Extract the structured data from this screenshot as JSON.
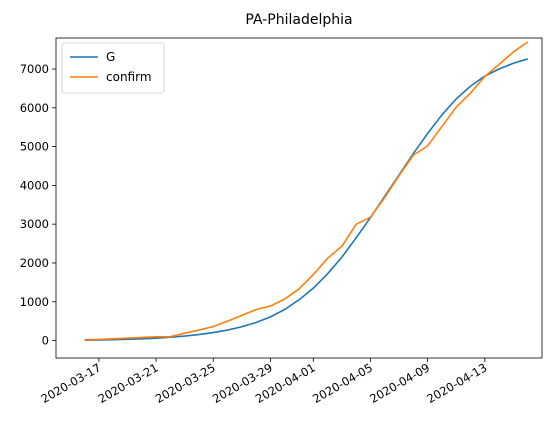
{
  "chart_data": {
    "type": "line",
    "title": "PA-Philadelphia",
    "xlabel": "",
    "ylabel": "",
    "x_tick_labels": [
      "2020-03-17",
      "2020-03-21",
      "2020-03-25",
      "2020-03-29",
      "2020-04-01",
      "2020-04-05",
      "2020-04-09",
      "2020-04-13"
    ],
    "x_tick_dates": [
      "2020-03-17",
      "2020-03-21",
      "2020-03-25",
      "2020-03-29",
      "2020-04-01",
      "2020-04-05",
      "2020-04-09",
      "2020-04-13"
    ],
    "y_ticks": [
      0,
      1000,
      2000,
      3000,
      4000,
      5000,
      6000,
      7000
    ],
    "x_range": [
      "2020-03-14",
      "2020-04-17"
    ],
    "ylim": [
      -450,
      7800
    ],
    "legend_position": "upper-left",
    "grid": false,
    "x": [
      "2020-03-16",
      "2020-03-17",
      "2020-03-18",
      "2020-03-19",
      "2020-03-20",
      "2020-03-21",
      "2020-03-22",
      "2020-03-23",
      "2020-03-24",
      "2020-03-25",
      "2020-03-26",
      "2020-03-27",
      "2020-03-28",
      "2020-03-29",
      "2020-03-30",
      "2020-03-31",
      "2020-04-01",
      "2020-04-02",
      "2020-04-03",
      "2020-04-04",
      "2020-04-05",
      "2020-04-06",
      "2020-04-07",
      "2020-04-08",
      "2020-04-09",
      "2020-04-10",
      "2020-04-11",
      "2020-04-12",
      "2020-04-13",
      "2020-04-14",
      "2020-04-15",
      "2020-04-16"
    ],
    "series": [
      {
        "name": "G",
        "color": "#1f77b4",
        "values": [
          10,
          15,
          22,
          32,
          45,
          62,
          85,
          115,
          155,
          205,
          270,
          355,
          465,
          610,
          800,
          1050,
          1350,
          1720,
          2150,
          2650,
          3170,
          3720,
          4270,
          4820,
          5340,
          5820,
          6230,
          6560,
          6820,
          7000,
          7150,
          7260
        ]
      },
      {
        "name": "confirm",
        "color": "#ff7f0e",
        "values": [
          20,
          30,
          45,
          60,
          80,
          95,
          100,
          190,
          270,
          360,
          500,
          650,
          800,
          890,
          1070,
          1330,
          1700,
          2120,
          2430,
          3000,
          3180,
          3690,
          4250,
          4780,
          5020,
          5520,
          6020,
          6380,
          6810,
          7120,
          7440,
          7700
        ]
      }
    ]
  }
}
